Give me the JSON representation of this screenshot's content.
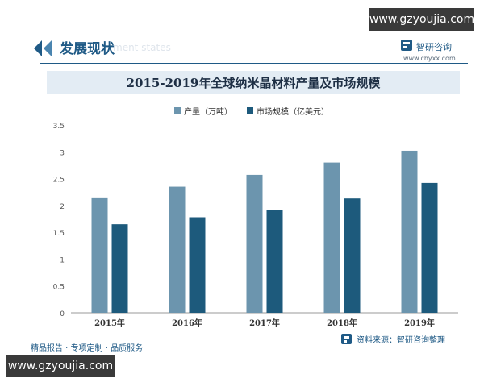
{
  "header": {
    "section_title": "发展现状",
    "section_title_en": "ment states",
    "brand_name": "智研咨询",
    "brand_url": "www.chyxx.com"
  },
  "watermarks": {
    "top": "www.gzyoujia.com",
    "bottom": "www.gzyoujia.com"
  },
  "footer": {
    "source": "资料来源：智研咨询整理",
    "slogan": "精品报告 · 专项定制 · 品质服务"
  },
  "colors": {
    "production": "#6c95ae",
    "market": "#1d5a7c",
    "brand": "#1f5a86"
  },
  "chart_data": {
    "type": "bar",
    "title": "2015-2019年全球纳米晶材料产量及市场规模",
    "categories": [
      "2015年",
      "2016年",
      "2017年",
      "2018年",
      "2019年"
    ],
    "series": [
      {
        "name": "产量（万吨）",
        "values": [
          2.15,
          2.35,
          2.57,
          2.8,
          3.02
        ]
      },
      {
        "name": "市场规模（亿美元）",
        "values": [
          1.65,
          1.78,
          1.92,
          2.13,
          2.42
        ]
      }
    ],
    "yticks": [
      "0",
      "0.5",
      "1",
      "1.5",
      "2",
      "2.5",
      "3",
      "3.5"
    ],
    "ylim": [
      0,
      3.5
    ],
    "grid": false,
    "legend": "top-center"
  }
}
